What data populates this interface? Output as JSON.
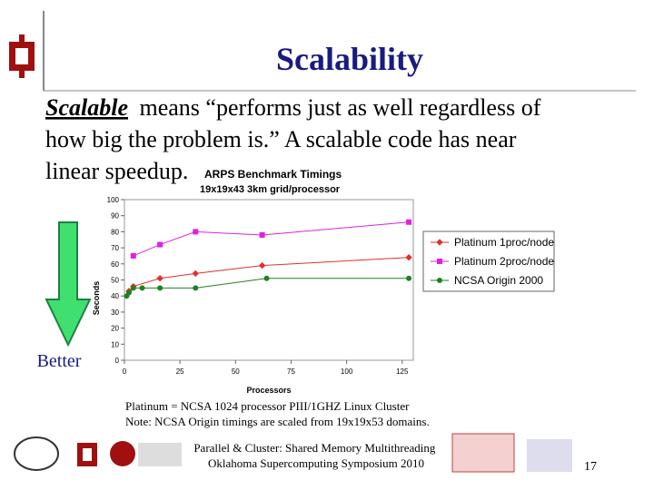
{
  "slide": {
    "title": "Scalability",
    "body_lead": "Scalable",
    "body_lines": [
      "means “performs just as well regardless of",
      "how big the problem is.” A scalable code has near",
      "linear speedup."
    ],
    "arrow_label": "Better",
    "notes": [
      "Platinum = NCSA 1024 processor PIII/1GHZ Linux Cluster",
      "Note: NCSA Origin timings are scaled from 19x19x53 domains."
    ],
    "footer": [
      "Parallel & Cluster: Shared Memory Multithreading",
      "Oklahoma Supercomputing Symposium 2010"
    ],
    "page_number": "17"
  },
  "chart_data": {
    "type": "line",
    "title": "ARPS Benchmark Timings",
    "subtitle": "19x19x43 3km grid/processor",
    "x_label": "Processors",
    "y_label": "Seconds",
    "xlim": [
      0,
      130
    ],
    "xticks": [
      0,
      25,
      50,
      75,
      100,
      125
    ],
    "ylim": [
      0,
      100
    ],
    "yticks": [
      0,
      10,
      20,
      30,
      40,
      50,
      60,
      70,
      80,
      90,
      100
    ],
    "grid": false,
    "legend": "right",
    "series": [
      {
        "name": "Platinum 1proc/node",
        "color": "#e03030",
        "marker": "diamond",
        "x": [
          2,
          4,
          16,
          32,
          62,
          128
        ],
        "values": [
          43,
          46,
          51,
          54,
          59,
          64
        ]
      },
      {
        "name": "Platinum 2proc/node",
        "color": "#e020e0",
        "marker": "square",
        "x": [
          4,
          16,
          32,
          62,
          128
        ],
        "values": [
          65,
          72,
          80,
          78,
          86
        ]
      },
      {
        "name": "NCSA Origin 2000",
        "color": "#208020",
        "marker": "circle",
        "x": [
          1,
          2,
          4,
          8,
          16,
          32,
          64,
          128
        ],
        "values": [
          40,
          42,
          45,
          45,
          45,
          45,
          51,
          51
        ]
      }
    ]
  }
}
